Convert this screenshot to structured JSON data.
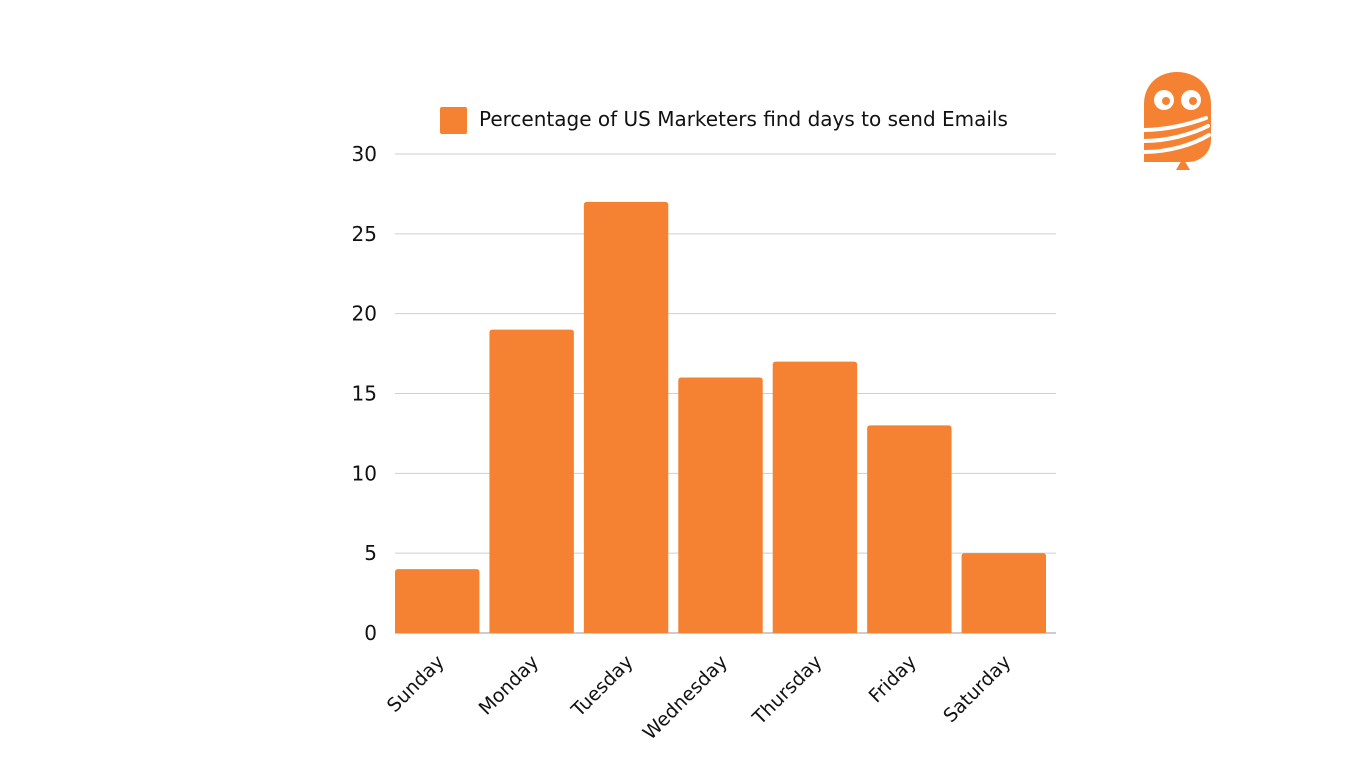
{
  "chart_data": {
    "type": "bar",
    "categories": [
      "Sunday",
      "Monday",
      "Tuesday",
      "Wednesday",
      "Thursday",
      "Friday",
      "Saturday"
    ],
    "series": [
      {
        "name": "Percentage of US Marketers find days to send Emails",
        "values": [
          4,
          19,
          27,
          16,
          17,
          13,
          5
        ],
        "color": "#F58232"
      }
    ],
    "ylim": [
      0,
      30
    ],
    "yticks": [
      0,
      5,
      10,
      15,
      20,
      25,
      30
    ],
    "grid": true,
    "legend": "top-center"
  },
  "logo": {
    "icon": "owl-logo-icon",
    "color": "#F58232"
  }
}
